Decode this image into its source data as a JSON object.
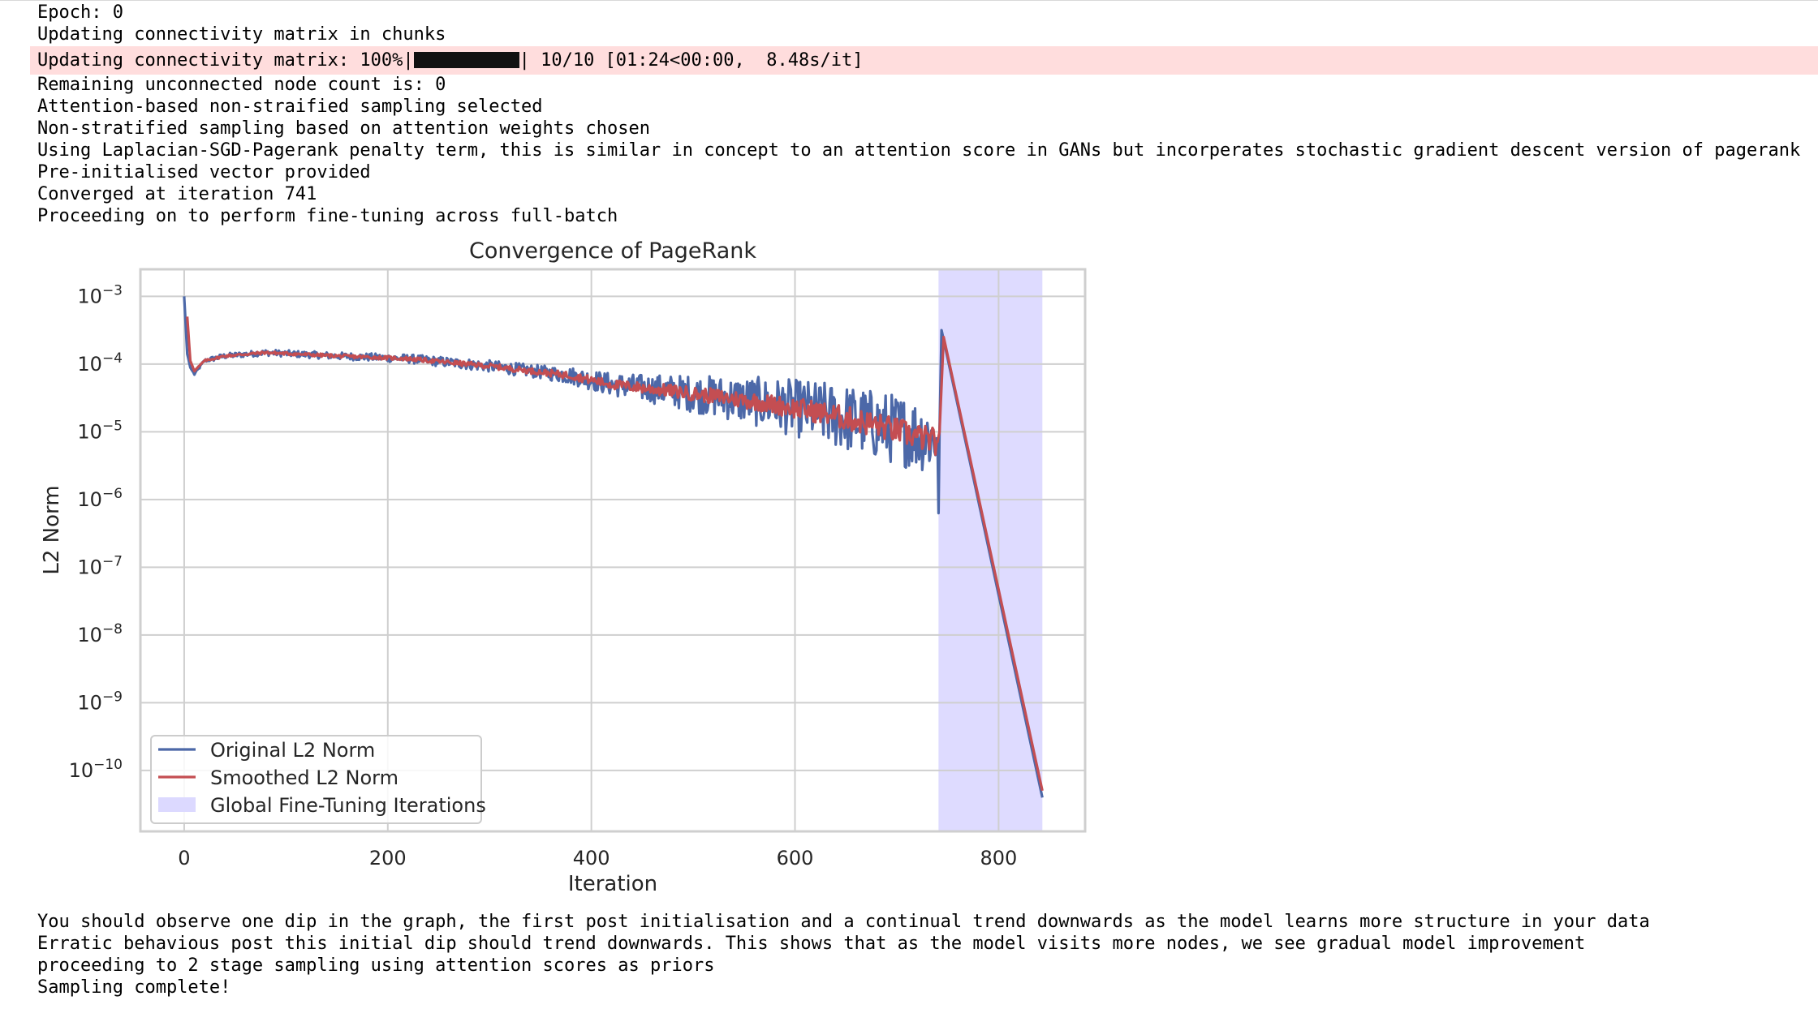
{
  "output_top": [
    "Epoch: 0",
    "Updating connectivity matrix in chunks"
  ],
  "progress_bar": {
    "prefix": "Updating connectivity matrix: 100%|",
    "suffix": "| 10/10 [01:24<00:00,  8.48s/it]",
    "percent": 100,
    "band_color": "#ffdddd"
  },
  "output_middle": [
    "Remaining unconnected node count is: 0",
    "Attention-based non-straified sampling selected",
    "Non-stratified sampling based on attention weights chosen",
    "Using Laplacian-SGD-Pagerank penalty term, this is similar in concept to an attention score in GANs but incorperates stochastic gradient descent version of pagerank",
    "Pre-initialised vector provided",
    "Converged at iteration 741",
    "Proceeding on to perform fine-tuning across full-batch"
  ],
  "output_bottom": [
    "You should observe one dip in the graph, the first post initialisation and a continual trend downwards as the model learns more structure in your data",
    "Erratic behavious post this initial dip should trend downwards. This shows that as the model visits more nodes, we see gradual model improvement",
    "proceeding to 2 stage sampling using attention scores as priors",
    "Sampling complete!"
  ],
  "chart_data": {
    "type": "line",
    "title": "Convergence of PageRank",
    "xlabel": "Iteration",
    "ylabel": "L2 Norm",
    "yscale": "log",
    "xlim": [
      -43,
      885
    ],
    "ylim_log10": [
      -10.9,
      -2.6
    ],
    "xticks": [
      0,
      200,
      400,
      600,
      800
    ],
    "xtick_labels": [
      "0",
      "200",
      "400",
      "600",
      "800"
    ],
    "yticks_log10": [
      -3,
      -4,
      -5,
      -6,
      -7,
      -8,
      -9,
      -10
    ],
    "ytick_exponents": [
      "−3",
      "−4",
      "−5",
      "−6",
      "−7",
      "−8",
      "−9",
      "−10"
    ],
    "ytick_base": "10",
    "grid": true,
    "legend_position": "lower-left",
    "fine_tuning_span": [
      741,
      843
    ],
    "series": [
      {
        "name": "Original L2 Norm",
        "color": "#4c68a8",
        "keypoints_log10": [
          [
            0,
            -3.0
          ],
          [
            3,
            -3.85
          ],
          [
            6,
            -4.05
          ],
          [
            10,
            -4.15
          ],
          [
            20,
            -3.95
          ],
          [
            40,
            -3.88
          ],
          [
            80,
            -3.83
          ],
          [
            150,
            -3.88
          ],
          [
            220,
            -3.92
          ],
          [
            300,
            -4.03
          ],
          [
            380,
            -4.17
          ],
          [
            420,
            -4.3
          ],
          [
            480,
            -4.4
          ],
          [
            560,
            -4.55
          ],
          [
            620,
            -4.7
          ],
          [
            680,
            -4.9
          ],
          [
            740,
            -5.1
          ],
          [
            741,
            -6.2
          ],
          [
            742,
            -5.0
          ],
          [
            744,
            -3.5
          ],
          [
            843,
            -10.4
          ]
        ],
        "noise_profile": [
          [
            0,
            0.0
          ],
          [
            30,
            0.04
          ],
          [
            200,
            0.06
          ],
          [
            350,
            0.1
          ],
          [
            450,
            0.2
          ],
          [
            550,
            0.35
          ],
          [
            650,
            0.5
          ],
          [
            740,
            0.55
          ]
        ]
      },
      {
        "name": "Smoothed L2 Norm",
        "color": "#c44e52",
        "keypoints_log10": [
          [
            3,
            -3.3
          ],
          [
            6,
            -3.95
          ],
          [
            10,
            -4.1
          ],
          [
            20,
            -3.95
          ],
          [
            40,
            -3.88
          ],
          [
            80,
            -3.83
          ],
          [
            150,
            -3.88
          ],
          [
            220,
            -3.92
          ],
          [
            300,
            -4.03
          ],
          [
            380,
            -4.17
          ],
          [
            420,
            -4.3
          ],
          [
            480,
            -4.4
          ],
          [
            560,
            -4.55
          ],
          [
            620,
            -4.7
          ],
          [
            680,
            -4.9
          ],
          [
            740,
            -5.15
          ],
          [
            742,
            -5.0
          ],
          [
            746,
            -3.6
          ],
          [
            843,
            -10.3
          ]
        ],
        "noise_profile": [
          [
            0,
            0.0
          ],
          [
            30,
            0.02
          ],
          [
            200,
            0.03
          ],
          [
            350,
            0.05
          ],
          [
            450,
            0.09
          ],
          [
            550,
            0.14
          ],
          [
            650,
            0.2
          ],
          [
            740,
            0.22
          ]
        ]
      },
      {
        "name": "Global Fine-Tuning Iterations",
        "color": "#dcd9ff"
      }
    ]
  }
}
